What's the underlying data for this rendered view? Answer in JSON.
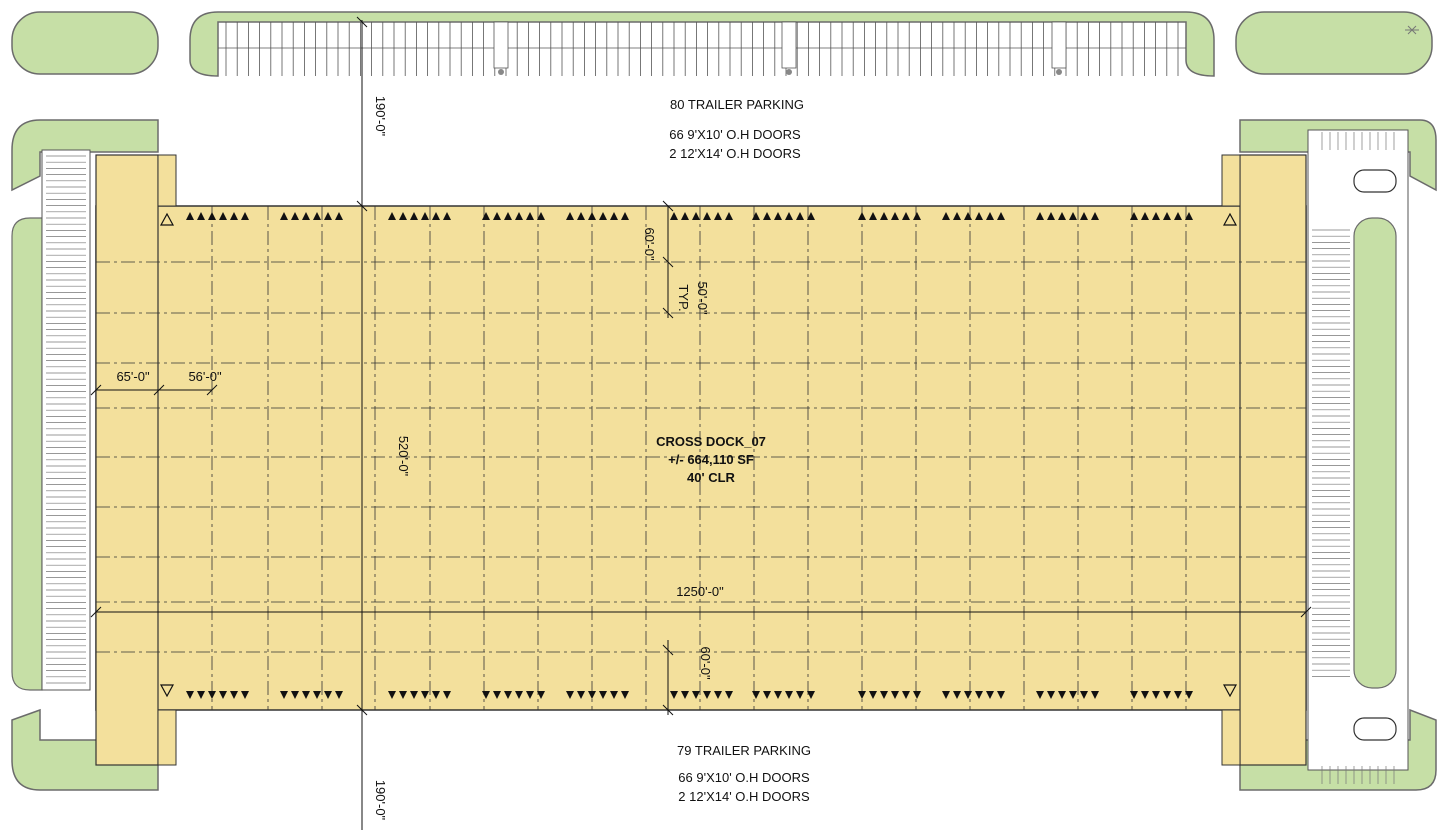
{
  "colors": {
    "building_fill": "#f3e09c",
    "building_stroke": "#333333",
    "landscape_fill": "#c6dfa6",
    "landscape_stroke": "#6b6b6b",
    "grid_line": "#333333",
    "text": "#111111"
  },
  "labels": {
    "top_trailer_parking": "80 TRAILER PARKING",
    "top_doors_line1": "66 9'X10' O.H DOORS",
    "top_doors_line2": "2 12'X14' O.H DOORS",
    "bottom_trailer_parking": "79 TRAILER PARKING",
    "bottom_doors_line1": "66 9'X10' O.H DOORS",
    "bottom_doors_line2": "2 12'X14' O.H DOORS",
    "building_name": "CROSS DOCK_07",
    "building_area": "+/- 664,110 SF",
    "building_clear": "40' CLR"
  },
  "dimensions": {
    "top_truck_court": "190'-0\"",
    "bottom_truck_court": "190'-0\"",
    "building_depth": "520'-0\"",
    "building_length": "1250'-0\"",
    "top_speed_bay": "60'-0\"",
    "bottom_speed_bay": "60'-0\"",
    "typical_bay": "50'-0\"",
    "typical_note": "TYP.",
    "end_bay_width": "65'-0\"",
    "typical_column_spacing": "56'-0\""
  },
  "door_groups": {
    "top": [
      6,
      6,
      6,
      6,
      6,
      6,
      6,
      6,
      6,
      6,
      6
    ],
    "bottom": [
      6,
      6,
      6,
      6,
      6,
      6,
      6,
      6,
      6,
      6,
      6
    ]
  },
  "icons": [
    "dock-door-triangle-icon",
    "drive-in-door-triangle-icon",
    "north-arrow-icon"
  ]
}
